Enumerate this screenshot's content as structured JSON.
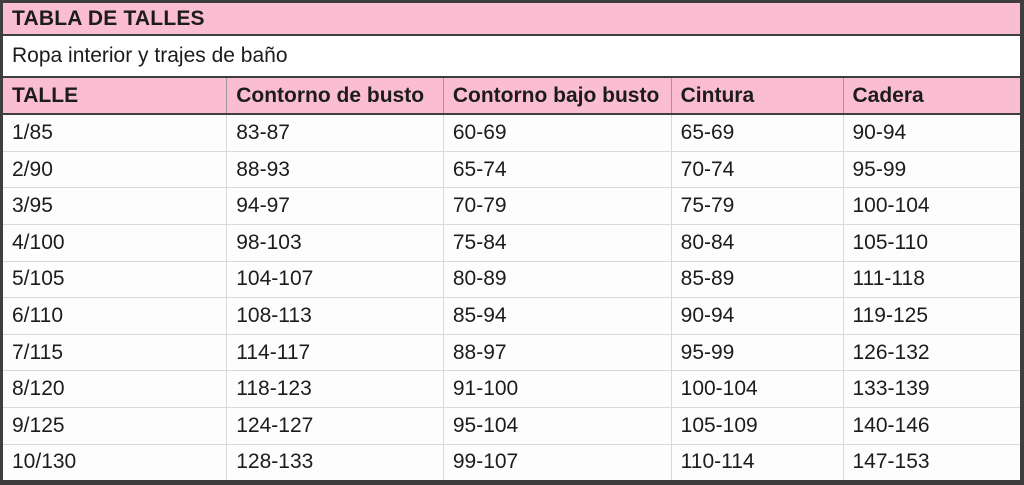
{
  "colors": {
    "pink": "#fbbdd1",
    "dark_border": "#3e3e3e",
    "light_border": "#d9d9d9",
    "header_divider": "#9a9a9a",
    "text": "#1c1c1c",
    "row_bg": "#fdfdfd"
  },
  "chart_data": {
    "type": "table",
    "title": "TABLA DE TALLES",
    "subtitle": "Ropa interior y trajes de baño",
    "columns": [
      "TALLE",
      "Contorno de busto",
      "Contorno bajo busto",
      "Cintura",
      "Cadera"
    ],
    "column_widths_pct": [
      22.0,
      21.3,
      22.4,
      16.9,
      17.4
    ],
    "rows": [
      [
        "1/85",
        "83-87",
        "60-69",
        "65-69",
        "90-94"
      ],
      [
        "2/90",
        "88-93",
        "65-74",
        "70-74",
        "95-99"
      ],
      [
        "3/95",
        "94-97",
        "70-79",
        "75-79",
        "100-104"
      ],
      [
        "4/100",
        "98-103",
        "75-84",
        "80-84",
        "105-110"
      ],
      [
        "5/105",
        "104-107",
        "80-89",
        "85-89",
        "111-118"
      ],
      [
        "6/110",
        "108-113",
        "85-94",
        "90-94",
        "119-125"
      ],
      [
        "7/115",
        "114-117",
        "88-97",
        "95-99",
        "126-132"
      ],
      [
        "8/120",
        "118-123",
        "91-100",
        "100-104",
        "133-139"
      ],
      [
        "9/125",
        "124-127",
        "95-104",
        "105-109",
        "140-146"
      ],
      [
        "10/130",
        "128-133",
        "99-107",
        "110-114",
        "147-153"
      ]
    ]
  }
}
